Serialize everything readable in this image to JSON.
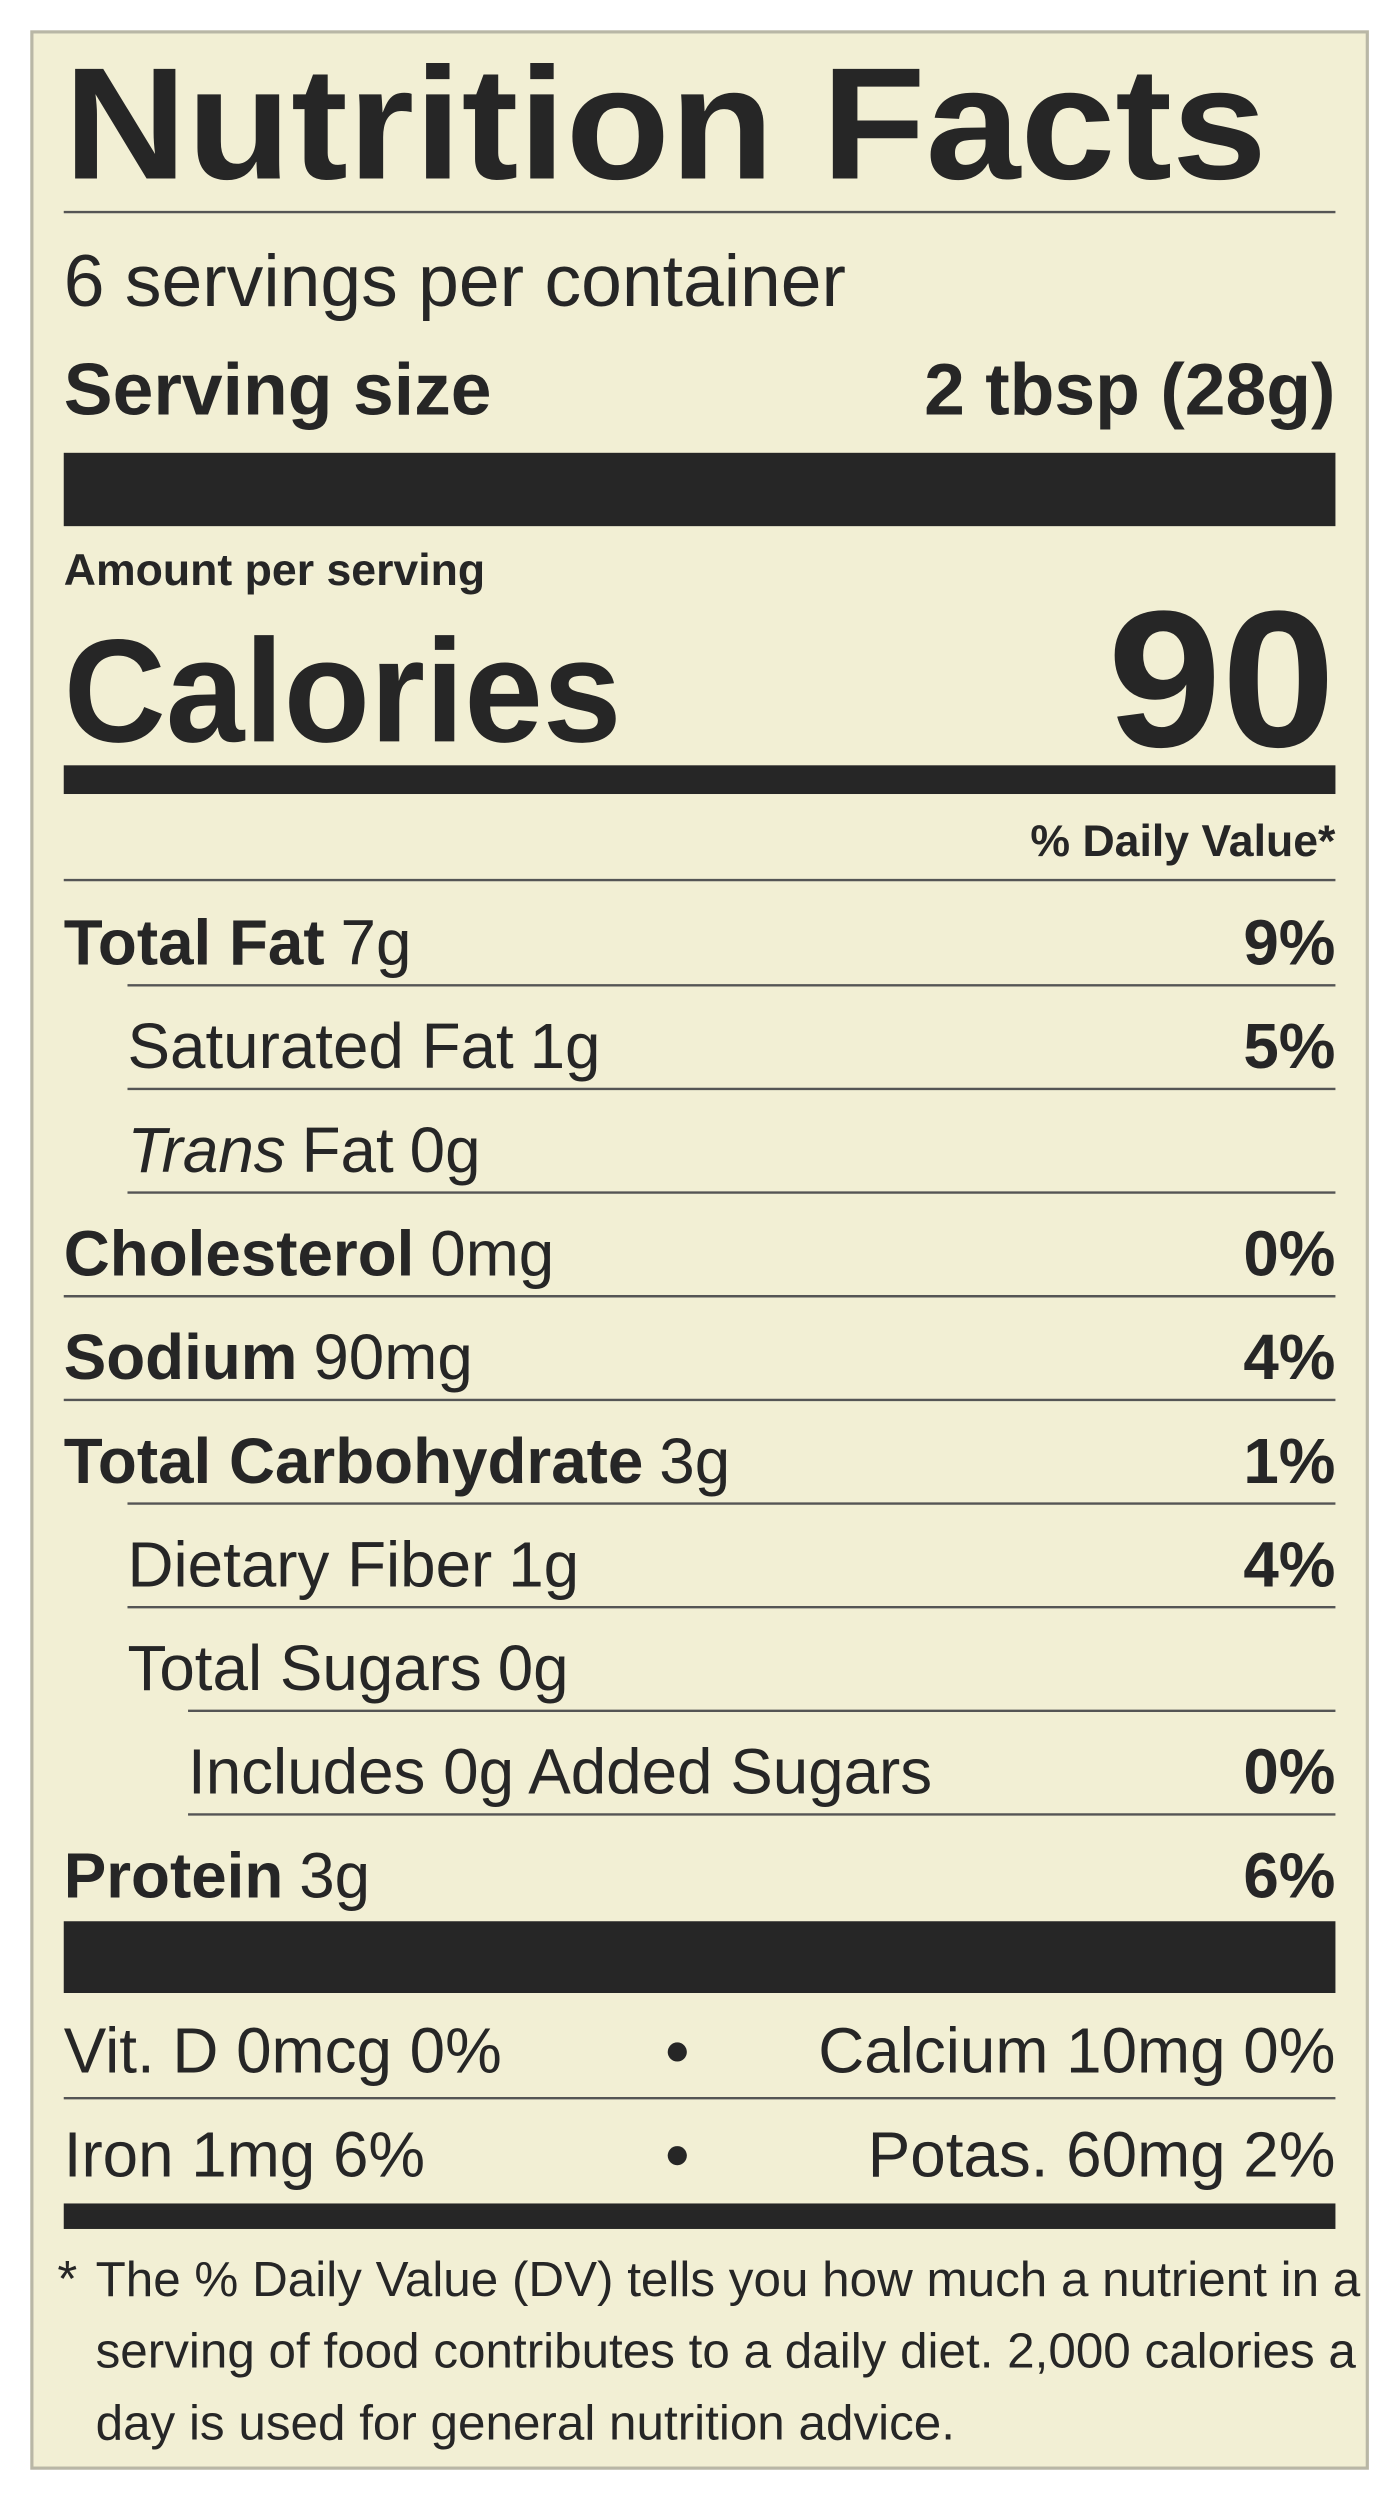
{
  "header": {
    "title": "Nutrition Facts",
    "servings": "6 servings per container",
    "serving_size_label": "Serving size",
    "serving_size_value": "2 tbsp (28g)"
  },
  "calories": {
    "amount_label": "Amount per serving",
    "label": "Calories",
    "value": "90"
  },
  "dv_header": "% Daily Value*",
  "nutrients": [
    {
      "name": "Total Fat",
      "amount": "7g",
      "dv": "9%",
      "bold": true,
      "indent": 0
    },
    {
      "name": "Saturated Fat",
      "amount": "1g",
      "dv": "5%",
      "bold": false,
      "indent": 1
    },
    {
      "italic_prefix": "Trans",
      "name": "Fat",
      "amount": "0g",
      "bold": false,
      "indent": 1
    },
    {
      "name": "Cholesterol",
      "amount": "0mg",
      "dv": "0%",
      "bold": true,
      "indent": 0
    },
    {
      "name": "Sodium",
      "amount": "90mg",
      "dv": "4%",
      "bold": true,
      "indent": 0
    },
    {
      "name": "Total Carbohydrate",
      "amount": "3g",
      "dv": "1%",
      "bold": true,
      "indent": 0
    },
    {
      "name": "Dietary Fiber",
      "amount": "1g",
      "dv": "4%",
      "bold": false,
      "indent": 1
    },
    {
      "name": "Total Sugars",
      "amount": "0g",
      "bold": false,
      "indent": 1
    },
    {
      "name": "Includes 0g Added Sugars",
      "dv": "0%",
      "bold": false,
      "indent": 2
    },
    {
      "name": "Protein",
      "amount": "3g",
      "dv": "6%",
      "bold": true,
      "indent": 0
    }
  ],
  "vitamins": [
    [
      "Vit. D 0mcg 0%",
      "Calcium 10mg 0%"
    ],
    [
      "Iron 1mg 6%",
      "Potas. 60mg 2%"
    ]
  ],
  "footnote": {
    "marker": "*",
    "lines": [
      "The % Daily Value (DV) tells you how much a nutrient in a",
      "serving of food contributes to a daily diet. 2,000 calories a",
      "day is used for general nutrition advice."
    ]
  }
}
